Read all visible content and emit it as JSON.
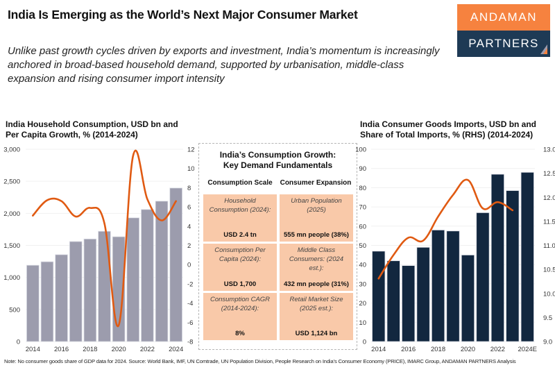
{
  "header": {
    "title": "India Is Emerging as the World’s Next Major Consumer Market",
    "subtitle": "Unlike past growth cycles driven by exports and investment, India’s momentum is increasingly anchored in broad-based household demand, supported by urbanisation, middle-class expansion and rising consumer import intensity"
  },
  "logo": {
    "line1": "ANDAMAN",
    "line2": "PARTNERS",
    "colors": {
      "top": "#f6823f",
      "bottom": "#1e3a55"
    }
  },
  "center_panel": {
    "title_line1": "India’s Consumption Growth:",
    "title_line2": "Key Demand Fundamentals",
    "col_heads": [
      "Consumption Scale",
      "Consumer Expansion"
    ],
    "cells": [
      {
        "label": "Household Consumption (2024):",
        "value": "USD 2.4 tn"
      },
      {
        "label": "Urban Population (2025)",
        "value": "555 mn people (38%)"
      },
      {
        "label": "Consumption Per Capita (2024):",
        "value": "USD 1,700"
      },
      {
        "label": "Middle Class Consumers: (2024 est.):",
        "value": "432 mn people (31%)"
      },
      {
        "label": "Consumption CAGR (2014-2024):",
        "value": "8%"
      },
      {
        "label": "Retail Market Size (2025 est.):",
        "value": "USD 1,124 bn"
      }
    ]
  },
  "footnote": "Note: No consumer goods share of GDP data for 2024. Source: World Bank, IMF, UN Comtrade, UN Population Division, People Research on India’s Consumer Economy (PRICE), IMARC Group, ANDAMAN PARTNERS Analysis",
  "chart_data": [
    {
      "type": "bar",
      "title": "India Household Consumption, USD bn and Per Capita Growth, % (2014-2024)",
      "categories": [
        "2014",
        "2015",
        "2016",
        "2017",
        "2018",
        "2019",
        "2020",
        "2021",
        "2022",
        "2023",
        "2024"
      ],
      "x_tick_labels": [
        "2014",
        "",
        "2016",
        "",
        "2018",
        "",
        "2020",
        "",
        "2022",
        "",
        "2024"
      ],
      "series": [
        {
          "name": "Household Consumption (USD bn)",
          "kind": "bar",
          "axis": "left",
          "color": "#9c9cad",
          "values": [
            1190,
            1245,
            1355,
            1560,
            1600,
            1720,
            1635,
            1930,
            2060,
            2190,
            2395
          ]
        },
        {
          "name": "Per Capita Growth (%)",
          "kind": "line",
          "axis": "right",
          "color": "#e05a12",
          "values": [
            5.1,
            6.7,
            6.6,
            5.0,
            5.9,
            4.3,
            -6.3,
            11.3,
            6.8,
            4.6,
            6.6
          ]
        }
      ],
      "ylim": [
        0,
        3000
      ],
      "yticks": [
        0,
        500,
        1000,
        1500,
        2000,
        2500,
        3000
      ],
      "ytick_labels": [
        "0",
        "500",
        "1,000",
        "1,500",
        "2,000",
        "2,500",
        "3,000"
      ],
      "y2lim": [
        -8,
        12
      ],
      "y2ticks": [
        -8,
        -6,
        -4,
        -2,
        0,
        2,
        4,
        6,
        8,
        10,
        12
      ],
      "y2tick_labels": [
        "-8",
        "-6",
        "-4",
        "-2",
        "0",
        "2",
        "4",
        "6",
        "8",
        "10",
        "12"
      ],
      "grid": true,
      "legend": "none"
    },
    {
      "type": "bar",
      "title": "India Consumer Goods Imports, USD bn and Share of Total Imports, % (RHS) (2014-2024)",
      "categories": [
        "2014",
        "2015",
        "2016",
        "2017",
        "2018",
        "2019",
        "2020",
        "2021",
        "2022",
        "2023",
        "2024E"
      ],
      "x_tick_labels": [
        "2014",
        "",
        "2016",
        "",
        "2018",
        "",
        "2020",
        "",
        "2022",
        "",
        "2024E"
      ],
      "series": [
        {
          "name": "Consumer Goods Imports (USD bn)",
          "kind": "bar",
          "axis": "left",
          "color": "#12273f",
          "values": [
            47,
            42,
            39.5,
            49,
            58,
            57.5,
            45,
            67,
            87,
            78.5,
            88
          ]
        },
        {
          "name": "Share of Total Imports (%)",
          "kind": "line",
          "axis": "right",
          "color": "#e05a12",
          "values": [
            10.31,
            10.8,
            11.16,
            11.1,
            11.6,
            12.05,
            12.36,
            11.77,
            11.9,
            11.73,
            null
          ]
        }
      ],
      "ylim": [
        0,
        100
      ],
      "yticks": [
        0,
        10,
        20,
        30,
        40,
        50,
        60,
        70,
        80,
        90,
        100
      ],
      "ytick_labels": [
        "0",
        "10",
        "20",
        "30",
        "40",
        "50",
        "60",
        "70",
        "80",
        "90",
        "100"
      ],
      "y2lim": [
        9.0,
        13.0
      ],
      "y2ticks": [
        9.0,
        9.5,
        10.0,
        10.5,
        11.0,
        11.5,
        12.0,
        12.5,
        13.0
      ],
      "y2tick_labels": [
        "9.0",
        "9.5",
        "10.0",
        "10.5",
        "11.0",
        "11.5",
        "12.0",
        "12.5",
        "13.0"
      ],
      "grid": true,
      "legend": "none"
    }
  ]
}
